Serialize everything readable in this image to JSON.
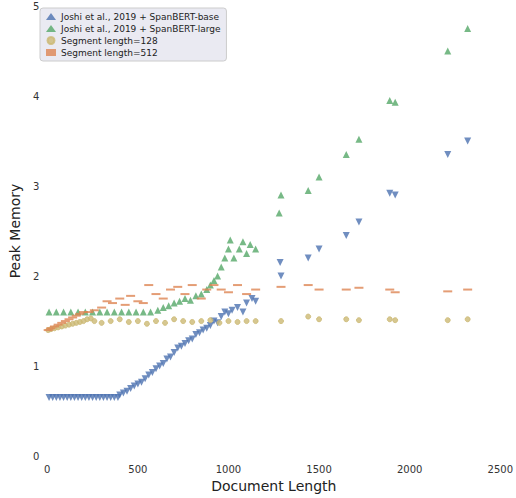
{
  "chart_data": {
    "type": "scatter",
    "x_label": "Document Length",
    "y_label": "Peak Memory",
    "xlim": [
      0,
      2500
    ],
    "xticks": [
      0,
      500,
      1000,
      1500,
      2000,
      2500
    ],
    "ylim": [
      0,
      5
    ],
    "yticks": [
      0,
      1,
      2,
      3,
      4,
      5
    ],
    "grid": false,
    "legend": "upper left",
    "series": [
      {
        "name": "Joshi et al., 2019 + SpanBERT-base",
        "color": "#4c72b0",
        "marker": "tri_down",
        "x": [
          10,
          30,
          50,
          70,
          90,
          110,
          130,
          150,
          170,
          190,
          210,
          230,
          250,
          270,
          290,
          310,
          330,
          350,
          370,
          390,
          400,
          420,
          440,
          460,
          480,
          500,
          520,
          540,
          560,
          580,
          600,
          620,
          640,
          660,
          680,
          700,
          720,
          740,
          760,
          780,
          800,
          820,
          840,
          860,
          880,
          900,
          920,
          940,
          960,
          980,
          1000,
          1020,
          1050,
          1080,
          1100,
          1130,
          1150,
          1285,
          1290,
          1440,
          1500,
          1650,
          1720,
          1890,
          1920,
          2210,
          2320
        ],
        "values": [
          0.65,
          0.65,
          0.65,
          0.65,
          0.65,
          0.65,
          0.65,
          0.65,
          0.65,
          0.65,
          0.65,
          0.65,
          0.65,
          0.65,
          0.65,
          0.65,
          0.65,
          0.65,
          0.65,
          0.65,
          0.68,
          0.7,
          0.72,
          0.75,
          0.78,
          0.8,
          0.82,
          0.86,
          0.9,
          0.93,
          0.97,
          1.0,
          1.03,
          1.08,
          1.1,
          1.15,
          1.2,
          1.22,
          1.25,
          1.28,
          1.3,
          1.35,
          1.37,
          1.4,
          1.42,
          1.45,
          1.5,
          1.48,
          1.55,
          1.6,
          1.58,
          1.62,
          1.65,
          1.6,
          1.7,
          1.75,
          1.72,
          2.15,
          2.0,
          2.2,
          2.3,
          2.45,
          2.6,
          2.92,
          2.9,
          3.35,
          3.5
        ]
      },
      {
        "name": "Joshi et al., 2019 + SpanBERT-large",
        "color": "#55a868",
        "marker": "tri_up",
        "x": [
          10,
          50,
          90,
          130,
          170,
          210,
          250,
          290,
          330,
          370,
          410,
          450,
          490,
          530,
          570,
          610,
          640,
          670,
          700,
          730,
          760,
          790,
          820,
          850,
          880,
          900,
          920,
          940,
          960,
          980,
          1000,
          1010,
          1030,
          1060,
          1080,
          1100,
          1120,
          1150,
          1280,
          1290,
          1440,
          1500,
          1650,
          1720,
          1890,
          1920,
          2210,
          2320
        ],
        "values": [
          1.6,
          1.6,
          1.6,
          1.6,
          1.6,
          1.6,
          1.6,
          1.6,
          1.6,
          1.6,
          1.6,
          1.6,
          1.6,
          1.6,
          1.6,
          1.62,
          1.65,
          1.67,
          1.7,
          1.72,
          1.75,
          1.73,
          1.78,
          1.8,
          1.85,
          1.9,
          1.95,
          2.0,
          2.1,
          2.2,
          2.3,
          2.4,
          2.2,
          2.3,
          2.38,
          2.25,
          2.35,
          2.3,
          2.7,
          2.9,
          2.95,
          3.1,
          3.35,
          3.52,
          3.95,
          3.93,
          4.5,
          4.75
        ]
      },
      {
        "name": "Segment length=128",
        "color": "#ccb974",
        "marker": "circle",
        "x": [
          5,
          20,
          40,
          60,
          80,
          100,
          120,
          140,
          160,
          180,
          200,
          220,
          240,
          260,
          300,
          350,
          400,
          450,
          500,
          550,
          600,
          650,
          700,
          750,
          800,
          850,
          900,
          950,
          1000,
          1050,
          1100,
          1150,
          1290,
          1440,
          1500,
          1650,
          1720,
          1890,
          1920,
          2210,
          2320
        ],
        "values": [
          1.4,
          1.41,
          1.42,
          1.43,
          1.44,
          1.45,
          1.46,
          1.47,
          1.48,
          1.49,
          1.5,
          1.52,
          1.53,
          1.5,
          1.48,
          1.5,
          1.52,
          1.49,
          1.5,
          1.47,
          1.5,
          1.48,
          1.52,
          1.5,
          1.49,
          1.5,
          1.51,
          1.48,
          1.5,
          1.49,
          1.5,
          1.5,
          1.5,
          1.55,
          1.52,
          1.52,
          1.51,
          1.52,
          1.51,
          1.51,
          1.52
        ]
      },
      {
        "name": "Segment length=512",
        "color": "#dd8452",
        "marker": "hline",
        "x": [
          5,
          20,
          40,
          60,
          80,
          100,
          120,
          140,
          160,
          180,
          200,
          230,
          260,
          300,
          330,
          360,
          400,
          430,
          460,
          500,
          530,
          560,
          600,
          640,
          680,
          720,
          760,
          800,
          850,
          880,
          920,
          960,
          1000,
          1050,
          1100,
          1150,
          1290,
          1440,
          1500,
          1650,
          1720,
          1890,
          1920,
          2210,
          2320
        ],
        "values": [
          1.4,
          1.42,
          1.44,
          1.46,
          1.48,
          1.5,
          1.52,
          1.54,
          1.56,
          1.58,
          1.6,
          1.6,
          1.62,
          1.65,
          1.72,
          1.7,
          1.75,
          1.68,
          1.78,
          1.72,
          1.7,
          1.9,
          1.8,
          1.75,
          1.85,
          1.88,
          1.8,
          1.9,
          1.75,
          1.85,
          1.9,
          1.85,
          1.82,
          1.9,
          1.8,
          1.85,
          1.88,
          1.9,
          1.85,
          1.85,
          1.87,
          1.85,
          1.82,
          1.83,
          1.85
        ]
      }
    ]
  }
}
